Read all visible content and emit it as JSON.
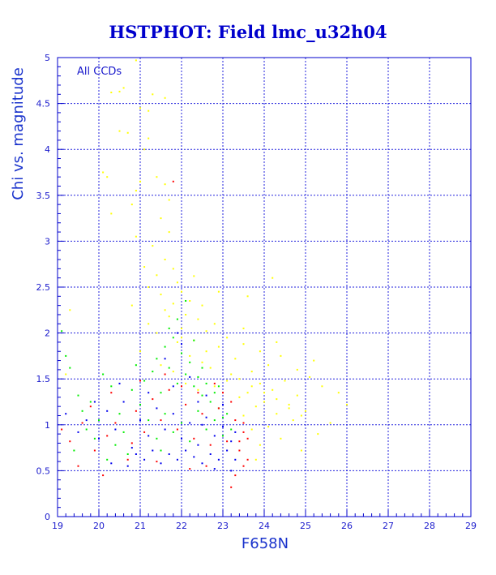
{
  "chart_data": {
    "type": "scatter",
    "title": "HSTPHOT: Field lmc_u32h04",
    "xlabel": "F658N",
    "ylabel": "Chi vs. magnitude",
    "annotation": "All CCDs",
    "xlim": [
      19,
      29
    ],
    "ylim": [
      0,
      5
    ],
    "xticks": [
      19,
      20,
      21,
      22,
      23,
      24,
      25,
      26,
      27,
      28,
      29
    ],
    "yticks": [
      0,
      0.5,
      1,
      1.5,
      2,
      2.5,
      3,
      3.5,
      4,
      4.5,
      5
    ],
    "grid": true,
    "colors": {
      "axes": "#0000cc",
      "grid": "#2222dd",
      "text": "#1a1acc"
    },
    "series": [
      {
        "color": "#ffff00",
        "points": [
          [
            20.9,
            4.97
          ],
          [
            20.3,
            4.62
          ],
          [
            20.5,
            4.63
          ],
          [
            20.6,
            4.67
          ],
          [
            21.3,
            4.6
          ],
          [
            21.6,
            4.56
          ],
          [
            21.2,
            4.42
          ],
          [
            21.0,
            4.45
          ],
          [
            20.5,
            4.2
          ],
          [
            20.7,
            4.18
          ],
          [
            21.2,
            4.12
          ],
          [
            21.1,
            4.0
          ],
          [
            21.4,
            3.7
          ],
          [
            21.0,
            3.65
          ],
          [
            21.6,
            3.62
          ],
          [
            20.9,
            3.55
          ],
          [
            20.2,
            3.7
          ],
          [
            21.7,
            3.45
          ],
          [
            20.8,
            3.4
          ],
          [
            20.3,
            3.3
          ],
          [
            21.5,
            3.25
          ],
          [
            21.7,
            3.1
          ],
          [
            20.9,
            3.05
          ],
          [
            21.3,
            2.95
          ],
          [
            21.6,
            2.8
          ],
          [
            21.1,
            2.72
          ],
          [
            21.8,
            2.7
          ],
          [
            21.4,
            2.63
          ],
          [
            21.9,
            2.55
          ],
          [
            21.2,
            2.5
          ],
          [
            22.0,
            2.45
          ],
          [
            21.5,
            2.42
          ],
          [
            22.2,
            2.35
          ],
          [
            21.8,
            2.32
          ],
          [
            22.5,
            2.3
          ],
          [
            22.1,
            2.2
          ],
          [
            21.7,
            2.18
          ],
          [
            22.4,
            2.15
          ],
          [
            22.8,
            2.1
          ],
          [
            22.0,
            2.05
          ],
          [
            22.6,
            2.02
          ],
          [
            23.1,
            1.95
          ],
          [
            22.3,
            1.92
          ],
          [
            23.5,
            1.88
          ],
          [
            22.9,
            1.85
          ],
          [
            23.9,
            1.8
          ],
          [
            24.4,
            1.75
          ],
          [
            23.3,
            1.72
          ],
          [
            24.1,
            1.65
          ],
          [
            24.8,
            1.6
          ],
          [
            23.7,
            1.58
          ],
          [
            25.1,
            1.52
          ],
          [
            24.5,
            1.48
          ],
          [
            23.9,
            1.45
          ],
          [
            25.4,
            1.42
          ],
          [
            24.2,
            1.38
          ],
          [
            23.6,
            1.35
          ],
          [
            24.8,
            1.32
          ],
          [
            23.4,
            1.3
          ],
          [
            24.0,
            1.25
          ],
          [
            24.6,
            1.22
          ],
          [
            23.8,
            1.2
          ],
          [
            25.0,
            1.15
          ],
          [
            24.3,
            1.12
          ],
          [
            23.5,
            1.1
          ],
          [
            24.7,
            1.05
          ],
          [
            25.6,
            1.02
          ],
          [
            24.1,
            0.98
          ],
          [
            23.7,
            0.95
          ],
          [
            25.3,
            0.9
          ],
          [
            24.4,
            0.85
          ],
          [
            23.9,
            0.78
          ],
          [
            24.9,
            0.72
          ],
          [
            26.0,
            1.22
          ],
          [
            25.8,
            1.35
          ],
          [
            22.7,
            1.62
          ],
          [
            22.2,
            1.75
          ],
          [
            21.9,
            1.9
          ],
          [
            23.2,
            1.55
          ],
          [
            22.5,
            1.68
          ],
          [
            21.4,
            2.0
          ],
          [
            21.6,
            2.25
          ],
          [
            24.2,
            2.6
          ],
          [
            23.5,
            2.05
          ],
          [
            20.1,
            3.75
          ],
          [
            19.2,
            1.55
          ],
          [
            19.3,
            2.25
          ],
          [
            22.3,
            2.62
          ],
          [
            22.9,
            2.45
          ],
          [
            23.6,
            2.4
          ],
          [
            24.3,
            1.9
          ],
          [
            21.8,
            1.58
          ],
          [
            22.1,
            1.45
          ],
          [
            22.4,
            1.38
          ],
          [
            22.8,
            1.42
          ],
          [
            23.1,
            1.48
          ],
          [
            23.4,
            1.5
          ],
          [
            23.7,
            1.42
          ],
          [
            24.0,
            1.35
          ],
          [
            24.3,
            1.28
          ],
          [
            24.6,
            1.18
          ],
          [
            24.9,
            1.1
          ],
          [
            22.6,
            1.8
          ],
          [
            22.0,
            1.95
          ],
          [
            21.5,
            1.65
          ],
          [
            21.2,
            2.1
          ],
          [
            21.0,
            1.8
          ],
          [
            20.8,
            2.3
          ],
          [
            23.8,
            0.62
          ],
          [
            25.2,
            1.7
          ]
        ]
      },
      {
        "color": "#00ee00",
        "points": [
          [
            19.1,
            2.02
          ],
          [
            19.2,
            1.75
          ],
          [
            19.3,
            1.62
          ],
          [
            19.5,
            1.32
          ],
          [
            19.6,
            1.15
          ],
          [
            19.8,
            1.25
          ],
          [
            20.0,
            1.05
          ],
          [
            20.1,
            1.55
          ],
          [
            20.3,
            1.42
          ],
          [
            20.5,
            1.12
          ],
          [
            20.6,
            0.92
          ],
          [
            20.8,
            1.38
          ],
          [
            21.0,
            1.22
          ],
          [
            21.1,
            1.48
          ],
          [
            21.3,
            1.58
          ],
          [
            21.4,
            1.72
          ],
          [
            21.5,
            1.35
          ],
          [
            21.6,
            1.85
          ],
          [
            21.7,
            1.62
          ],
          [
            21.8,
            1.95
          ],
          [
            21.9,
            1.45
          ],
          [
            22.0,
            1.78
          ],
          [
            22.1,
            1.55
          ],
          [
            22.2,
            1.68
          ],
          [
            22.3,
            1.42
          ],
          [
            22.4,
            1.52
          ],
          [
            22.5,
            1.32
          ],
          [
            22.6,
            1.45
          ],
          [
            22.7,
            1.25
          ],
          [
            22.8,
            1.35
          ],
          [
            22.9,
            1.18
          ],
          [
            23.0,
            1.08
          ],
          [
            23.1,
            1.12
          ],
          [
            23.2,
            0.95
          ],
          [
            21.2,
            1.05
          ],
          [
            21.4,
            0.85
          ],
          [
            21.6,
            1.12
          ],
          [
            21.8,
            0.92
          ],
          [
            22.0,
            1.02
          ],
          [
            22.2,
            0.82
          ],
          [
            22.4,
            1.15
          ],
          [
            22.6,
            0.95
          ],
          [
            22.8,
            1.05
          ],
          [
            23.0,
            0.88
          ],
          [
            20.4,
            0.78
          ],
          [
            20.7,
            0.68
          ],
          [
            19.9,
            0.85
          ],
          [
            19.4,
            0.72
          ],
          [
            21.9,
            2.15
          ],
          [
            22.1,
            2.35
          ],
          [
            21.7,
            2.05
          ],
          [
            22.3,
            1.92
          ],
          [
            20.9,
            1.65
          ],
          [
            19.7,
            0.95
          ],
          [
            20.2,
            0.62
          ],
          [
            21.5,
            0.72
          ],
          [
            22.5,
            1.62
          ],
          [
            22.9,
            1.42
          ]
        ]
      },
      {
        "color": "#ff0000",
        "points": [
          [
            19.1,
            0.95
          ],
          [
            19.3,
            0.82
          ],
          [
            19.6,
            1.02
          ],
          [
            19.9,
            0.72
          ],
          [
            20.2,
            0.88
          ],
          [
            20.4,
            1.02
          ],
          [
            20.7,
            0.62
          ],
          [
            20.9,
            1.15
          ],
          [
            21.1,
            0.92
          ],
          [
            21.3,
            1.28
          ],
          [
            21.5,
            1.05
          ],
          [
            21.7,
            1.38
          ],
          [
            21.9,
            0.95
          ],
          [
            22.1,
            1.22
          ],
          [
            22.3,
            0.85
          ],
          [
            22.5,
            1.12
          ],
          [
            22.7,
            0.78
          ],
          [
            22.9,
            1.18
          ],
          [
            23.1,
            0.82
          ],
          [
            23.3,
            1.05
          ],
          [
            23.4,
            0.72
          ],
          [
            23.5,
            0.92
          ],
          [
            23.6,
            0.62
          ],
          [
            23.5,
            0.55
          ],
          [
            23.3,
            0.45
          ],
          [
            23.4,
            0.82
          ],
          [
            23.6,
            0.85
          ],
          [
            23.2,
            1.25
          ],
          [
            23.0,
            1.35
          ],
          [
            22.8,
            1.45
          ],
          [
            21.8,
            3.65
          ],
          [
            20.3,
            1.35
          ],
          [
            21.0,
            1.48
          ],
          [
            21.6,
            1.55
          ],
          [
            19.5,
            0.55
          ],
          [
            20.1,
            0.45
          ],
          [
            22.6,
            0.55
          ],
          [
            22.2,
            0.52
          ],
          [
            23.2,
            0.32
          ],
          [
            21.4,
            0.6
          ],
          [
            20.8,
            0.8
          ],
          [
            22.0,
            1.42
          ],
          [
            19.8,
            1.2
          ],
          [
            23.5,
            1.02
          ],
          [
            22.4,
            1.35
          ]
        ]
      },
      {
        "color": "#0000ee",
        "points": [
          [
            19.2,
            1.12
          ],
          [
            19.5,
            0.92
          ],
          [
            19.7,
            1.05
          ],
          [
            20.0,
            0.85
          ],
          [
            20.2,
            1.15
          ],
          [
            20.4,
            0.95
          ],
          [
            20.6,
            1.25
          ],
          [
            20.8,
            0.75
          ],
          [
            21.0,
            1.05
          ],
          [
            21.2,
            0.88
          ],
          [
            21.4,
            1.18
          ],
          [
            21.6,
            0.95
          ],
          [
            21.8,
            1.12
          ],
          [
            22.0,
            0.85
          ],
          [
            22.2,
            1.02
          ],
          [
            22.4,
            0.78
          ],
          [
            22.6,
            1.08
          ],
          [
            22.8,
            0.88
          ],
          [
            23.0,
            0.98
          ],
          [
            23.2,
            0.82
          ],
          [
            23.3,
            0.92
          ],
          [
            23.1,
            0.72
          ],
          [
            22.9,
            0.62
          ],
          [
            22.7,
            0.68
          ],
          [
            22.5,
            0.58
          ],
          [
            22.3,
            0.65
          ],
          [
            22.1,
            0.72
          ],
          [
            21.9,
            0.62
          ],
          [
            21.7,
            0.68
          ],
          [
            21.5,
            0.58
          ],
          [
            21.3,
            0.72
          ],
          [
            21.1,
            0.62
          ],
          [
            20.9,
            0.68
          ],
          [
            20.7,
            0.55
          ],
          [
            21.8,
            1.42
          ],
          [
            22.2,
            1.52
          ],
          [
            22.6,
            1.32
          ],
          [
            22.0,
            1.88
          ],
          [
            21.6,
            1.72
          ],
          [
            23.0,
            1.22
          ],
          [
            22.4,
            1.25
          ],
          [
            21.2,
            1.35
          ],
          [
            20.5,
            1.45
          ],
          [
            19.9,
            1.25
          ],
          [
            20.3,
            0.58
          ],
          [
            22.8,
            0.52
          ],
          [
            23.2,
            0.5
          ],
          [
            21.9,
            2.0
          ],
          [
            23.3,
            0.62
          ],
          [
            22.5,
            1.0
          ]
        ]
      }
    ]
  }
}
